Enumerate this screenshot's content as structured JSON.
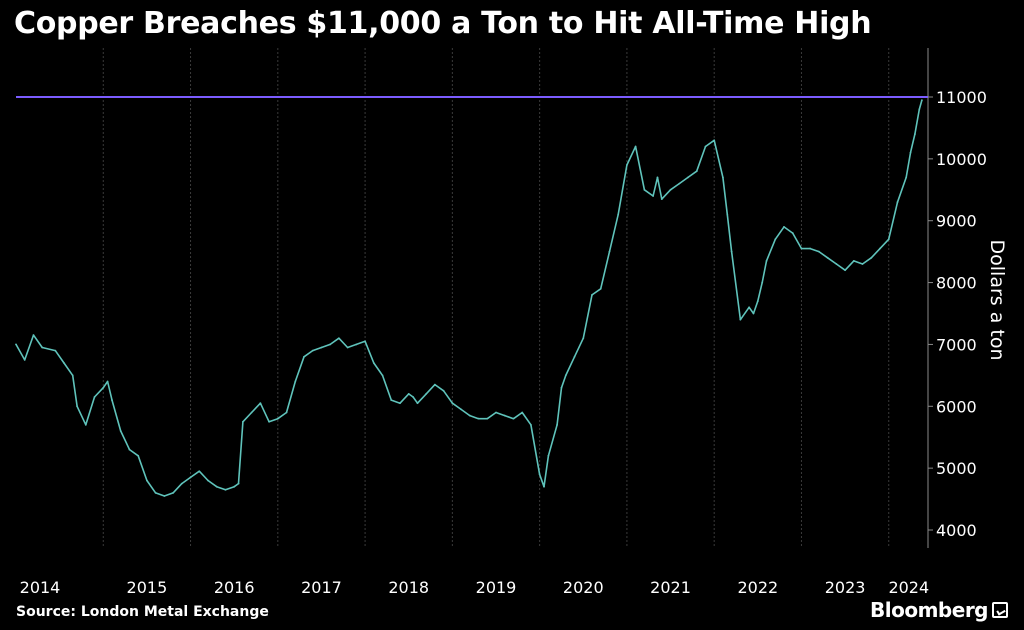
{
  "title": "Copper Breaches $11,000 a Ton to Hit All-Time High",
  "source": "Source: London Metal Exchange",
  "brand": "Bloomberg",
  "colors": {
    "background": "#000000",
    "series": "#5fc3bb",
    "reference_line": "#7b5cff",
    "grid": "#3a3a3a"
  },
  "chart_data": {
    "type": "line",
    "title": "Copper Breaches $11,000 a Ton to Hit All-Time High",
    "xlabel": "",
    "ylabel": "Dollars a ton",
    "ylim": [
      3800,
      11800
    ],
    "xlim": [
      2014.0,
      2024.45
    ],
    "x_ticks": [
      "2014",
      "2015",
      "2016",
      "2017",
      "2018",
      "2019",
      "2020",
      "2021",
      "2022",
      "2023",
      "2024"
    ],
    "y_ticks": [
      4000,
      5000,
      6000,
      7000,
      8000,
      9000,
      10000,
      11000
    ],
    "grid": "vertical",
    "reference_line": {
      "y": 11000
    },
    "series": [
      {
        "x": [
          2014.0,
          2014.1,
          2014.2,
          2014.3,
          2014.45,
          2014.55,
          2014.65,
          2014.7,
          2014.8,
          2014.9,
          2015.0,
          2015.05,
          2015.1,
          2015.2,
          2015.3,
          2015.4,
          2015.5,
          2015.6,
          2015.7,
          2015.8,
          2015.9,
          2016.0,
          2016.1,
          2016.2,
          2016.3,
          2016.4,
          2016.5,
          2016.55,
          2016.6,
          2016.7,
          2016.8,
          2016.9,
          2017.0,
          2017.1,
          2017.2,
          2017.3,
          2017.4,
          2017.5,
          2017.6,
          2017.7,
          2017.8,
          2017.9,
          2018.0,
          2018.1,
          2018.2,
          2018.3,
          2018.4,
          2018.5,
          2018.55,
          2018.6,
          2018.7,
          2018.8,
          2018.9,
          2019.0,
          2019.1,
          2019.2,
          2019.3,
          2019.4,
          2019.5,
          2019.6,
          2019.7,
          2019.8,
          2019.9,
          2020.0,
          2020.05,
          2020.1,
          2020.2,
          2020.25,
          2020.3,
          2020.4,
          2020.5,
          2020.6,
          2020.7,
          2020.8,
          2020.9,
          2021.0,
          2021.1,
          2021.2,
          2021.3,
          2021.35,
          2021.4,
          2021.5,
          2021.6,
          2021.7,
          2021.8,
          2021.9,
          2022.0,
          2022.1,
          2022.15,
          2022.2,
          2022.3,
          2022.4,
          2022.45,
          2022.5,
          2022.55,
          2022.6,
          2022.7,
          2022.8,
          2022.9,
          2023.0,
          2023.1,
          2023.2,
          2023.3,
          2023.4,
          2023.5,
          2023.6,
          2023.7,
          2023.8,
          2023.9,
          2024.0,
          2024.1,
          2024.2,
          2024.25,
          2024.3,
          2024.35,
          2024.38
        ],
        "y": [
          7000,
          6750,
          7150,
          6950,
          6900,
          6700,
          6500,
          6000,
          5700,
          6150,
          6300,
          6400,
          6100,
          5600,
          5300,
          5200,
          4800,
          4600,
          4550,
          4600,
          4750,
          4850,
          4950,
          4800,
          4700,
          4650,
          4700,
          4750,
          5750,
          5900,
          6050,
          5750,
          5800,
          5900,
          6400,
          6800,
          6900,
          6950,
          7000,
          7100,
          6950,
          7000,
          7050,
          6700,
          6500,
          6100,
          6050,
          6200,
          6150,
          6050,
          6200,
          6350,
          6250,
          6050,
          5950,
          5850,
          5800,
          5800,
          5900,
          5850,
          5800,
          5900,
          5700,
          4900,
          4700,
          5200,
          5700,
          6300,
          6500,
          6800,
          7100,
          7800,
          7900,
          8500,
          9100,
          9900,
          10200,
          9500,
          9400,
          9700,
          9350,
          9500,
          9600,
          9700,
          9800,
          10200,
          10300,
          9700,
          9100,
          8500,
          7400,
          7600,
          7500,
          7700,
          8000,
          8350,
          8700,
          8900,
          8800,
          8550,
          8550,
          8500,
          8400,
          8300,
          8200,
          8350,
          8300,
          8400,
          8550,
          8700,
          9300,
          9700,
          10100,
          10400,
          10800,
          10950
        ]
      }
    ]
  }
}
